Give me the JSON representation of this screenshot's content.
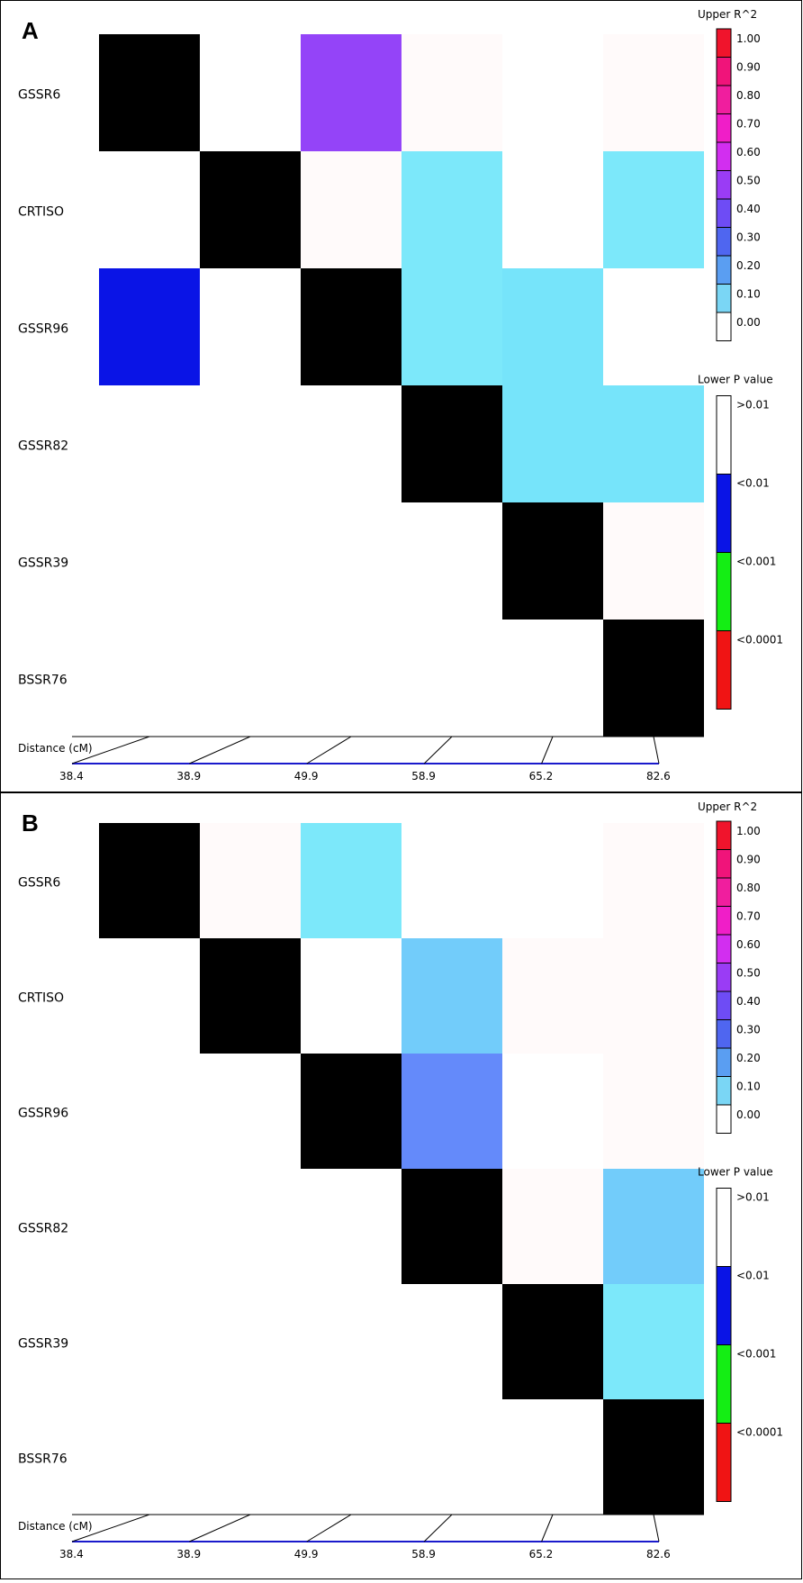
{
  "panels": [
    {
      "letter": "A",
      "chart_data": {
        "type": "heatmap",
        "markers": [
          "GSSR6",
          "CRTISO",
          "GSSR96",
          "GSSR82",
          "GSSR39",
          "BSSR76"
        ],
        "distance_label": "Distance (cM)",
        "distances": [
          "38.4",
          "38.9",
          "49.9",
          "58.9",
          "65.2",
          "82.6"
        ],
        "upper_legend_title": "Upper R^2",
        "upper_legend_ticks": [
          "1.00",
          "0.90",
          "0.80",
          "0.70",
          "0.60",
          "0.50",
          "0.40",
          "0.30",
          "0.20",
          "0.10",
          "0.00"
        ],
        "upper_legend_colors": [
          "#f0142c",
          "#f0147a",
          "#f01e9e",
          "#f01ec8",
          "#d22ef0",
          "#9a3cf5",
          "#6e4cf5",
          "#4f66f0",
          "#5a9ef2",
          "#7ad6f5",
          "#ffffff"
        ],
        "lower_legend_title": "Lower P value",
        "lower_legend_labels": [
          ">0.01",
          "<0.01",
          "<0.001",
          "<0.0001"
        ],
        "lower_legend_colors": [
          "#ffffff",
          "#0a14e6",
          "#14ee14",
          "#f01414"
        ],
        "cells": [
          {
            "row": 0,
            "col": 2,
            "color": "#9444f8",
            "meaning": "R2 0.40-0.50"
          },
          {
            "row": 0,
            "col": 3,
            "color": "#fffafa",
            "meaning": "R2 ~0"
          },
          {
            "row": 0,
            "col": 5,
            "color": "#fffafa",
            "meaning": "R2 ~0"
          },
          {
            "row": 1,
            "col": 2,
            "color": "#fffafa",
            "meaning": "R2 ~0"
          },
          {
            "row": 1,
            "col": 3,
            "color": "#7ce8fa",
            "meaning": "R2 0.10"
          },
          {
            "row": 1,
            "col": 5,
            "color": "#7ce8fa",
            "meaning": "R2 0.10"
          },
          {
            "row": 2,
            "col": 3,
            "color": "#7ce8fa",
            "meaning": "R2 0.10"
          },
          {
            "row": 2,
            "col": 4,
            "color": "#76e4fa",
            "meaning": "R2 0.10"
          },
          {
            "row": 2,
            "col": 0,
            "color": "#0a14e6",
            "meaning": "P<0.01"
          },
          {
            "row": 3,
            "col": 4,
            "color": "#76e4fa",
            "meaning": "R2 0.10"
          },
          {
            "row": 3,
            "col": 5,
            "color": "#76e4fa",
            "meaning": "R2 0.10"
          },
          {
            "row": 4,
            "col": 5,
            "color": "#fffafa",
            "meaning": "R2 ~0"
          }
        ]
      }
    },
    {
      "letter": "B",
      "chart_data": {
        "type": "heatmap",
        "markers": [
          "GSSR6",
          "CRTISO",
          "GSSR96",
          "GSSR82",
          "GSSR39",
          "BSSR76"
        ],
        "distance_label": "Distance (cM)",
        "distances": [
          "38.4",
          "38.9",
          "49.9",
          "58.9",
          "65.2",
          "82.6"
        ],
        "upper_legend_title": "Upper R^2",
        "upper_legend_ticks": [
          "1.00",
          "0.90",
          "0.80",
          "0.70",
          "0.60",
          "0.50",
          "0.40",
          "0.30",
          "0.20",
          "0.10",
          "0.00"
        ],
        "upper_legend_colors": [
          "#f0142c",
          "#f0147a",
          "#f01e9e",
          "#f01ec8",
          "#d22ef0",
          "#9a3cf5",
          "#6e4cf5",
          "#4f66f0",
          "#5a9ef2",
          "#7ad6f5",
          "#ffffff"
        ],
        "lower_legend_title": "Lower P value",
        "lower_legend_labels": [
          ">0.01",
          "<0.01",
          "<0.001",
          "<0.0001"
        ],
        "lower_legend_colors": [
          "#ffffff",
          "#0a14e6",
          "#14ee14",
          "#f01414"
        ],
        "cells": [
          {
            "row": 0,
            "col": 1,
            "color": "#fffafa",
            "meaning": "R2 ~0"
          },
          {
            "row": 0,
            "col": 2,
            "color": "#7ce8fa",
            "meaning": "R2 0.10"
          },
          {
            "row": 0,
            "col": 5,
            "color": "#fffafa",
            "meaning": "R2 ~0"
          },
          {
            "row": 1,
            "col": 3,
            "color": "#72ccfa",
            "meaning": "R2 0.20"
          },
          {
            "row": 1,
            "col": 4,
            "color": "#fffafa",
            "meaning": "R2 ~0"
          },
          {
            "row": 1,
            "col": 5,
            "color": "#fffafa",
            "meaning": "R2 ~0"
          },
          {
            "row": 2,
            "col": 3,
            "color": "#648afa",
            "meaning": "R2 0.30"
          },
          {
            "row": 2,
            "col": 5,
            "color": "#fffafa",
            "meaning": "R2 ~0"
          },
          {
            "row": 3,
            "col": 4,
            "color": "#fffafa",
            "meaning": "R2 ~0"
          },
          {
            "row": 3,
            "col": 5,
            "color": "#72ccfa",
            "meaning": "R2 0.20"
          },
          {
            "row": 4,
            "col": 5,
            "color": "#7ce8fa",
            "meaning": "R2 0.10"
          }
        ]
      }
    }
  ]
}
